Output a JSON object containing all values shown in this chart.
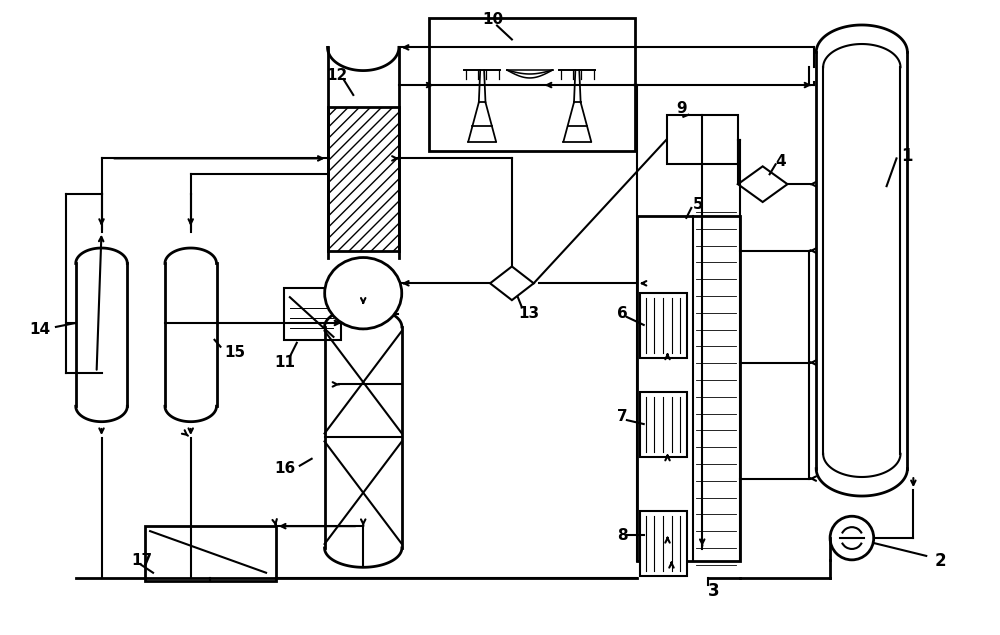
{
  "bg": "#ffffff",
  "lc": "#000000",
  "lw": 1.5,
  "figw": 10.0,
  "figh": 6.35
}
